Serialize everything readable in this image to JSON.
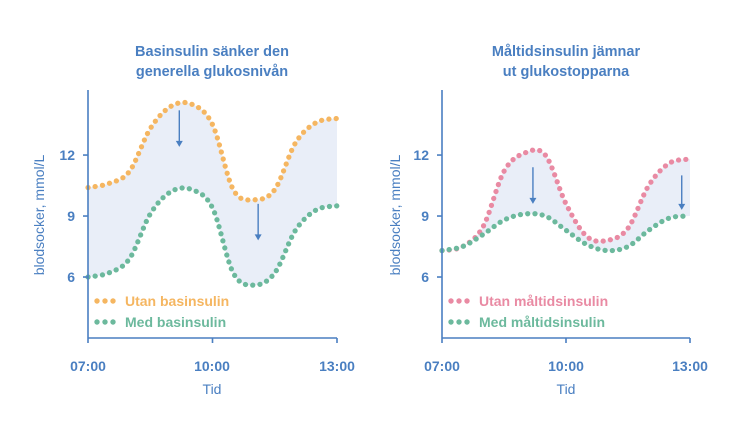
{
  "colors": {
    "axis": "#4a7fc1",
    "title": "#4a7fc1",
    "fill": "#e9eef8",
    "orange": "#f5b661",
    "green": "#6cb99d",
    "pink": "#e98aa3"
  },
  "chart_data": [
    {
      "type": "line",
      "title_lines": [
        "Basinsulin sänker den",
        "generella glukosnivån"
      ],
      "xlabel": "Tid",
      "ylabel": "blodsocker, mmol/L",
      "xticks": [
        "07:00",
        "10:00",
        "13:00"
      ],
      "xlim": [
        7,
        13
      ],
      "yticks": [
        6,
        9,
        12
      ],
      "ylim": [
        3,
        15.2
      ],
      "grid": false,
      "shaded_between_series": true,
      "legend_position": "bottom-left",
      "series": [
        {
          "name": "Utan basinsulin",
          "color": "orange",
          "style": "dotted",
          "x": [
            7,
            7.5,
            8,
            8.5,
            9,
            9.5,
            10,
            10.5,
            11,
            11.5,
            12,
            12.5,
            13
          ],
          "y": [
            10.4,
            10.6,
            11.2,
            13.3,
            14.4,
            14.5,
            13.5,
            10.3,
            9.8,
            10.3,
            12.6,
            13.6,
            13.8
          ]
        },
        {
          "name": "Med basinsulin",
          "color": "green",
          "style": "dotted",
          "x": [
            7,
            7.5,
            8,
            8.5,
            9,
            9.5,
            10,
            10.5,
            11,
            11.5,
            12,
            12.5,
            13
          ],
          "y": [
            6.0,
            6.2,
            6.9,
            9.1,
            10.2,
            10.3,
            9.4,
            6.2,
            5.6,
            6.2,
            8.3,
            9.3,
            9.5
          ]
        }
      ],
      "arrows": [
        {
          "x": 9.2,
          "from": 14.2,
          "to": 12.4
        },
        {
          "x": 11.1,
          "from": 9.6,
          "to": 7.8
        }
      ]
    },
    {
      "type": "line",
      "title_lines": [
        "Måltidsinsulin jämnar",
        "ut glukostopparna"
      ],
      "xlabel": "Tid",
      "ylabel": "blodsocker, mmol/L",
      "xticks": [
        "07:00",
        "10:00",
        "13:00"
      ],
      "xlim": [
        7,
        13
      ],
      "yticks": [
        6,
        9,
        12
      ],
      "ylim": [
        3,
        15.2
      ],
      "grid": false,
      "shaded_between_series": true,
      "legend_position": "bottom-left",
      "series": [
        {
          "name": "Utan måltidsinsulin",
          "color": "pink",
          "style": "dotted",
          "x": [
            7,
            7.5,
            8,
            8.5,
            9,
            9.5,
            10,
            10.5,
            11,
            11.5,
            12,
            12.5,
            13
          ],
          "y": [
            7.3,
            7.5,
            8.5,
            11.2,
            12.1,
            12.0,
            9.6,
            8.0,
            7.8,
            8.4,
            10.5,
            11.6,
            11.8
          ]
        },
        {
          "name": "Med måltidsinsulin",
          "color": "green",
          "style": "dotted",
          "x": [
            7,
            7.5,
            8,
            8.5,
            9,
            9.5,
            10,
            10.5,
            11,
            11.5,
            12,
            12.5,
            13
          ],
          "y": [
            7.3,
            7.5,
            8.1,
            8.8,
            9.1,
            9.0,
            8.3,
            7.6,
            7.3,
            7.5,
            8.3,
            8.9,
            9.0
          ]
        }
      ],
      "arrows": [
        {
          "x": 9.2,
          "from": 11.4,
          "to": 9.6
        },
        {
          "x": 12.8,
          "from": 11.0,
          "to": 9.3
        }
      ]
    }
  ]
}
